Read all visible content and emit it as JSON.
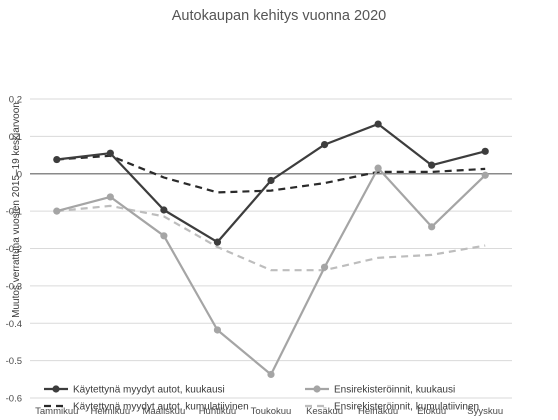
{
  "chart_data": {
    "type": "line",
    "title": "Autokaupan kehitys vuonna 2020",
    "xlabel": "",
    "ylabel": "Muutos verrattuna vuosien 2015–19 keskiarvoon",
    "categories": [
      "Tammikuu",
      "Helmikuu",
      "Maaliskuu",
      "Huhtikuu",
      "Toukokuu",
      "Kesäkuu",
      "Heinäkuu",
      "Elokuu",
      "Syyskuu"
    ],
    "yticks": [
      {
        "value": 0.2,
        "label": "0.2"
      },
      {
        "value": 0.1,
        "label": "0.1"
      },
      {
        "value": 0,
        "label": "0"
      },
      {
        "value": -0.1,
        "label": "-0.1"
      },
      {
        "value": -0.2,
        "label": "-0.2"
      },
      {
        "value": -0.3,
        "label": "-0.3"
      },
      {
        "value": -0.4,
        "label": "-0.4"
      },
      {
        "value": -0.5,
        "label": "-0.5"
      },
      {
        "value": -0.6,
        "label": "-0.6"
      }
    ],
    "ylim": [
      -0.6,
      0.2
    ],
    "grid": true,
    "legend_position": "bottom",
    "series": [
      {
        "name": "Käytettynä myydyt autot, kuukausi",
        "values": [
          0.038,
          0.055,
          -0.097,
          -0.183,
          -0.018,
          0.078,
          0.133,
          0.023,
          0.06
        ],
        "color": "#3d3d3d",
        "style": "solid",
        "marker": true
      },
      {
        "name": "Ensirekisteröinnit, kuukausi",
        "values": [
          -0.1,
          -0.062,
          -0.166,
          -0.418,
          -0.537,
          -0.25,
          0.015,
          -0.142,
          -0.004
        ],
        "color": "#a5a5a5",
        "style": "solid",
        "marker": true
      },
      {
        "name": "Käytettynä myydyt autot, kumulatiivinen",
        "values": [
          0.038,
          0.048,
          -0.01,
          -0.05,
          -0.045,
          -0.025,
          0.005,
          0.005,
          0.013
        ],
        "color": "#2a2a2a",
        "style": "dashed",
        "marker": false
      },
      {
        "name": "Ensirekisteröinnit, kumulatiivinen",
        "values": [
          -0.1,
          -0.086,
          -0.114,
          -0.196,
          -0.258,
          -0.258,
          -0.225,
          -0.217,
          -0.192
        ],
        "color": "#bdbdbd",
        "style": "dashed",
        "marker": false
      }
    ]
  }
}
